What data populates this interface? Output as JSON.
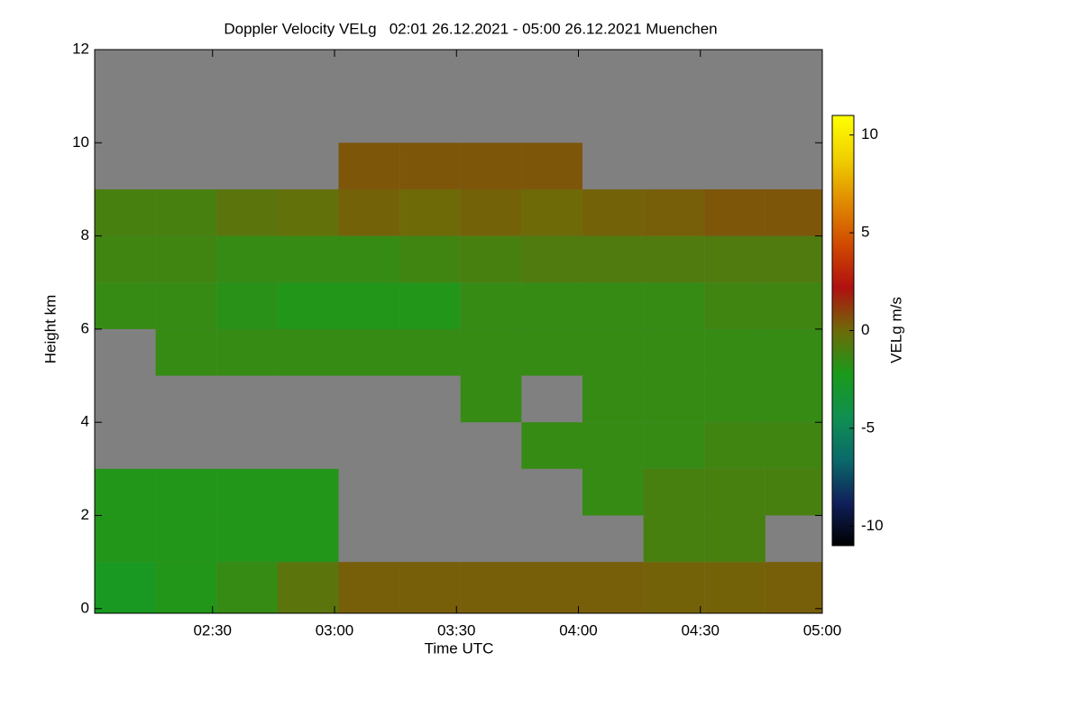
{
  "chart_data": {
    "type": "heatmap",
    "title": "Doppler Velocity VELg   02:01 26.12.2021 - 05:00 26.12.2021 Muenchen",
    "x_label": "Time UTC",
    "y_label": "Height km",
    "colorbar_label": "VELg m/s",
    "xlim": [
      121,
      300
    ],
    "xticks": [
      {
        "value": 150,
        "label": "02:30"
      },
      {
        "value": 180,
        "label": "03:00"
      },
      {
        "value": 210,
        "label": "03:30"
      },
      {
        "value": 240,
        "label": "04:00"
      },
      {
        "value": 270,
        "label": "04:30"
      },
      {
        "value": 300,
        "label": "05:00"
      }
    ],
    "ylim": [
      -0.1,
      12
    ],
    "yticks": [
      0,
      2,
      4,
      6,
      8,
      10,
      12
    ],
    "zlim": [
      -11,
      11
    ],
    "zticks": [
      10,
      5,
      0,
      -5,
      -10
    ],
    "background_color": "#808080",
    "colormap": [
      "#000000",
      "#10205a",
      "#0a6a6a",
      "#109050",
      "#1a9a1a",
      "#6e6a08",
      "#b01010",
      "#d04a00",
      "#e08c00",
      "#f0d000",
      "#ffff00"
    ],
    "x_edges": [
      121,
      136,
      151,
      166,
      181,
      196,
      211,
      226,
      241,
      256,
      271,
      286,
      300
    ],
    "y_edges": [
      0,
      1,
      2,
      3,
      4,
      5,
      6,
      7,
      8,
      9,
      10,
      11,
      12
    ],
    "z": [
      [
        -2.5,
        -2,
        -1.5,
        -0.5,
        0.3,
        0.3,
        0.3,
        0.3,
        0.3,
        0.2,
        0.2,
        0.3
      ],
      [
        -2,
        -2,
        -2,
        -2,
        null,
        null,
        null,
        null,
        null,
        -1,
        -1,
        null
      ],
      [
        -2,
        -2,
        -2,
        -2,
        null,
        null,
        null,
        null,
        -1.5,
        -1,
        -1,
        -1
      ],
      [
        null,
        null,
        null,
        null,
        null,
        null,
        null,
        -1.5,
        -1.5,
        -1.5,
        -1.2,
        -1.2
      ],
      [
        null,
        null,
        null,
        null,
        null,
        null,
        -1.5,
        null,
        -1.5,
        -1.5,
        -1.5,
        -1.5
      ],
      [
        null,
        -1.5,
        -1.5,
        -1.5,
        -1.5,
        -1.5,
        -1.5,
        -1.5,
        -1.5,
        -1.5,
        -1.5,
        -1.5
      ],
      [
        -1.5,
        -1.5,
        -1.8,
        -2,
        -2,
        -2,
        -1.5,
        -1.5,
        -1.5,
        -1.5,
        -1.2,
        -1.2
      ],
      [
        -1.2,
        -1.2,
        -1.5,
        -1.5,
        -1.5,
        -1.2,
        -1,
        -0.8,
        -0.8,
        -0.8,
        -0.8,
        -0.8
      ],
      [
        -1,
        -1,
        -0.5,
        -0.3,
        0.2,
        0,
        0.2,
        0,
        0.2,
        0.3,
        0.5,
        0.5
      ],
      [
        null,
        null,
        null,
        null,
        0.5,
        0.5,
        0.5,
        0.5,
        null,
        null,
        null,
        null
      ],
      [
        null,
        null,
        null,
        null,
        null,
        null,
        null,
        null,
        null,
        null,
        null,
        null
      ],
      [
        null,
        null,
        null,
        null,
        null,
        null,
        null,
        null,
        null,
        null,
        null,
        null
      ]
    ]
  }
}
